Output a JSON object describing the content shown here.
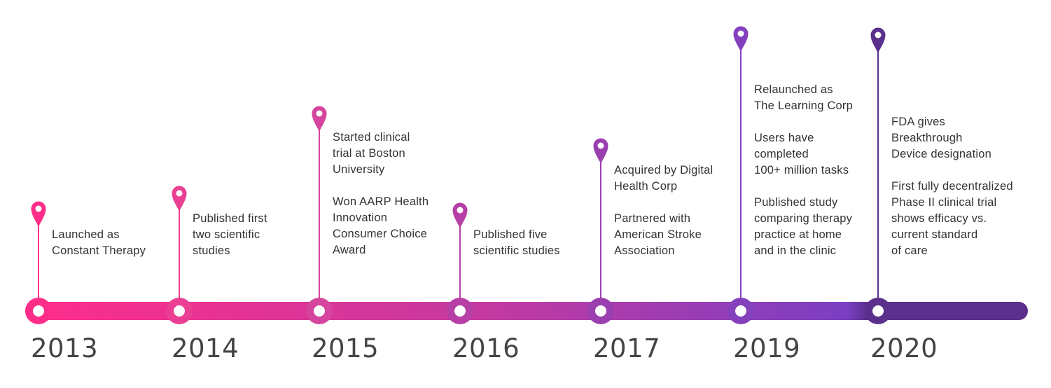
{
  "milestones": [
    {
      "year": "2013",
      "color": "#ff2d8a",
      "text": [
        "Launched as\nConstant Therapy"
      ]
    },
    {
      "year": "2014",
      "color": "#ea3f93",
      "text": [
        "Published first\ntwo scientific\nstudies"
      ]
    },
    {
      "year": "2015",
      "color": "#d5449d",
      "text": [
        "Started clinical\ntrial at Boston\nUniversity",
        "Won AARP Health\nInnovation\nConsumer Choice\nAward"
      ]
    },
    {
      "year": "2016",
      "color": "#b63fa5",
      "text": [
        "Published five\nscientific studies"
      ]
    },
    {
      "year": "2017",
      "color": "#9a3fb0",
      "text": [
        "Acquired by Digital\nHealth Corp",
        "Partnered with\nAmerican Stroke\nAssociation"
      ]
    },
    {
      "year": "2019",
      "color": "#8440bd",
      "text": [
        "Relaunched as\nThe Learning Corp",
        "Users have\ncompleted\n100+ million tasks",
        "Published study\ncomparing therapy\npractice at home\nand in the clinic"
      ]
    },
    {
      "year": "2020",
      "color": "#5b2f8c",
      "text": [
        "FDA gives\nBreakthrough\nDevice designation",
        "First fully decentralized\nPhase II clinical trial\nshows efficacy vs.\ncurrent standard\nof care"
      ]
    }
  ],
  "bar_colors": [
    "#ff2d8a",
    "#c63aa0",
    "#7a3fc2",
    "#5b2f8c"
  ]
}
